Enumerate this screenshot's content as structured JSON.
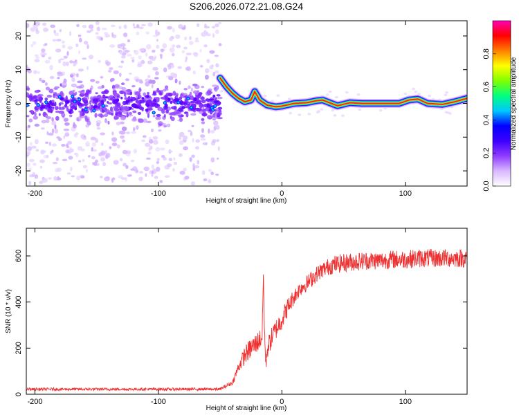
{
  "figure_title": "S206.2026.072.21.08.G24",
  "chart_data": [
    {
      "type": "heatmap",
      "title": "S206.2026.072.21.08.G24",
      "xlabel": "Height of straight line (km)",
      "ylabel": "Frequency (Hz)",
      "xlim": [
        -207,
        150
      ],
      "ylim": [
        -24.5,
        24.5
      ],
      "xticks": [
        -200,
        -100,
        0,
        100
      ],
      "yticks": [
        -20,
        -10,
        0,
        10,
        20
      ],
      "ytick_labels": [
        "-20",
        "-10",
        "0",
        "10",
        "20"
      ],
      "xtick_labels": [
        "-200",
        "-100",
        "0",
        "100"
      ],
      "colorbar": {
        "label": "Normalized spectral amplitude",
        "range": [
          0,
          1
        ],
        "ticks": [
          0.0,
          0.2,
          0.4,
          0.6,
          0.8
        ],
        "tick_labels": [
          "0.0",
          "0.2",
          "0.4",
          "0.6",
          "0.8"
        ],
        "colormap": [
          "#ffffff",
          "#d9b8ff",
          "#8f3cff",
          "#3c00ff",
          "#0000ff",
          "#00c8ff",
          "#00ff80",
          "#80ff00",
          "#ffff00",
          "#ff8000",
          "#ff0000",
          "#ff00b4"
        ]
      },
      "noise_region": {
        "x_range": [
          -207,
          -50
        ],
        "center_freq": 0,
        "spread_hz": 24
      },
      "signal_trace": {
        "x": [
          -50,
          -45,
          -40,
          -35,
          -30,
          -25,
          -22,
          -18,
          -12,
          -5,
          0,
          10,
          20,
          28,
          33,
          40,
          45,
          55,
          65,
          80,
          95,
          103,
          110,
          118,
          130,
          140,
          150
        ],
        "freq": [
          7.5,
          5,
          3,
          1.5,
          0.5,
          1,
          3.5,
          1,
          -0.5,
          -1,
          -0.8,
          0,
          0.2,
          0.8,
          1,
          0,
          -0.7,
          0.2,
          0,
          0,
          0,
          1,
          1.3,
          0,
          -0.3,
          0.5,
          1.5
        ],
        "amplitude": 0.95
      }
    },
    {
      "type": "line",
      "title": "",
      "xlabel": "Height of straight line (km)",
      "ylabel": "SNR (10 * v/v)",
      "xlim": [
        -207,
        150
      ],
      "ylim": [
        0,
        720
      ],
      "xticks": [
        -200,
        -100,
        0,
        100
      ],
      "yticks": [
        0,
        200,
        400,
        600
      ],
      "xtick_labels": [
        "-200",
        "-100",
        "0",
        "100"
      ],
      "ytick_labels": [
        "0",
        "200",
        "400",
        "600"
      ],
      "line_color": "#ee3030",
      "series": [
        {
          "name": "SNR",
          "x": [
            -207,
            -150,
            -100,
            -50,
            -40,
            -35,
            -30,
            -25,
            -20,
            -16,
            -15,
            -14,
            -13,
            -12,
            -8,
            -5,
            0,
            5,
            10,
            15,
            20,
            25,
            30,
            35,
            40,
            50,
            60,
            70,
            80,
            90,
            100,
            110,
            120,
            130,
            140,
            150
          ],
          "y": [
            22,
            22,
            22,
            22,
            50,
            120,
            170,
            200,
            225,
            250,
            520,
            260,
            120,
            195,
            250,
            280,
            325,
            380,
            425,
            460,
            480,
            505,
            530,
            545,
            560,
            570,
            575,
            580,
            580,
            585,
            585,
            590,
            590,
            590,
            590,
            590
          ],
          "noise": [
            6,
            6,
            6,
            6,
            10,
            25,
            40,
            45,
            45,
            45,
            10,
            45,
            30,
            45,
            45,
            45,
            45,
            40,
            35,
            35,
            35,
            35,
            35,
            35,
            40,
            40,
            40,
            40,
            40,
            40,
            40,
            40,
            40,
            40,
            40,
            40
          ]
        }
      ]
    }
  ]
}
